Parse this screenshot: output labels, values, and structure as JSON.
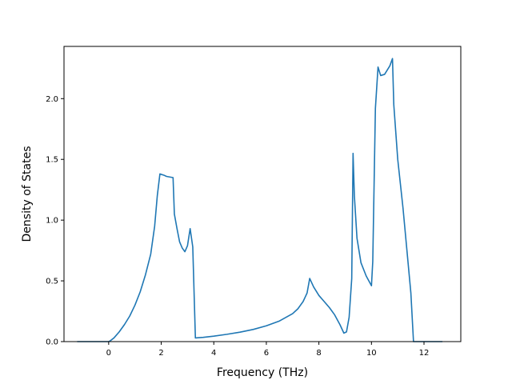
{
  "chart_data": {
    "type": "line",
    "title": "",
    "xlabel": "Frequency (THz)",
    "ylabel": "Density of States",
    "xlim": [
      -1.7,
      13.4
    ],
    "ylim": [
      0.0,
      2.43
    ],
    "xticks": [
      0,
      2,
      4,
      6,
      8,
      10,
      12
    ],
    "xtick_labels": [
      "0",
      "2",
      "4",
      "6",
      "8",
      "10",
      "12"
    ],
    "yticks": [
      0.0,
      0.5,
      1.0,
      1.5,
      2.0
    ],
    "ytick_labels": [
      "0.0",
      "0.5",
      "1.0",
      "1.5",
      "2.0"
    ],
    "grid": false,
    "legend": false,
    "series": [
      {
        "color": "#1f77b4",
        "x": [
          -1.2,
          -0.6,
          0.0,
          0.05,
          0.2,
          0.4,
          0.6,
          0.8,
          1.0,
          1.2,
          1.4,
          1.6,
          1.75,
          1.85,
          1.95,
          2.1,
          2.2,
          2.45,
          2.5,
          2.6,
          2.7,
          2.8,
          2.9,
          3.0,
          3.1,
          3.2,
          3.3,
          3.6,
          4.0,
          4.5,
          5.0,
          5.5,
          6.0,
          6.5,
          7.0,
          7.2,
          7.4,
          7.55,
          7.65,
          7.8,
          8.0,
          8.2,
          8.4,
          8.6,
          8.8,
          8.95,
          9.05,
          9.15,
          9.25,
          9.3,
          9.35,
          9.45,
          9.6,
          9.8,
          10.0,
          10.05,
          10.15,
          10.25,
          10.35,
          10.5,
          10.7,
          10.8,
          10.85,
          11.0,
          11.2,
          11.5,
          11.6,
          11.8,
          12.2,
          12.7
        ],
        "y": [
          0.0,
          0.0,
          0.0,
          0.005,
          0.03,
          0.08,
          0.14,
          0.21,
          0.3,
          0.41,
          0.55,
          0.72,
          0.95,
          1.2,
          1.38,
          1.37,
          1.36,
          1.35,
          1.05,
          0.93,
          0.82,
          0.77,
          0.74,
          0.79,
          0.93,
          0.78,
          0.03,
          0.035,
          0.045,
          0.06,
          0.078,
          0.1,
          0.13,
          0.17,
          0.23,
          0.27,
          0.33,
          0.4,
          0.52,
          0.45,
          0.38,
          0.33,
          0.28,
          0.22,
          0.14,
          0.07,
          0.08,
          0.2,
          0.52,
          1.55,
          1.2,
          0.85,
          0.65,
          0.54,
          0.46,
          0.66,
          1.92,
          2.26,
          2.19,
          2.2,
          2.27,
          2.33,
          1.95,
          1.5,
          1.1,
          0.4,
          0.0,
          0.0,
          0.0,
          0.0
        ]
      }
    ]
  }
}
